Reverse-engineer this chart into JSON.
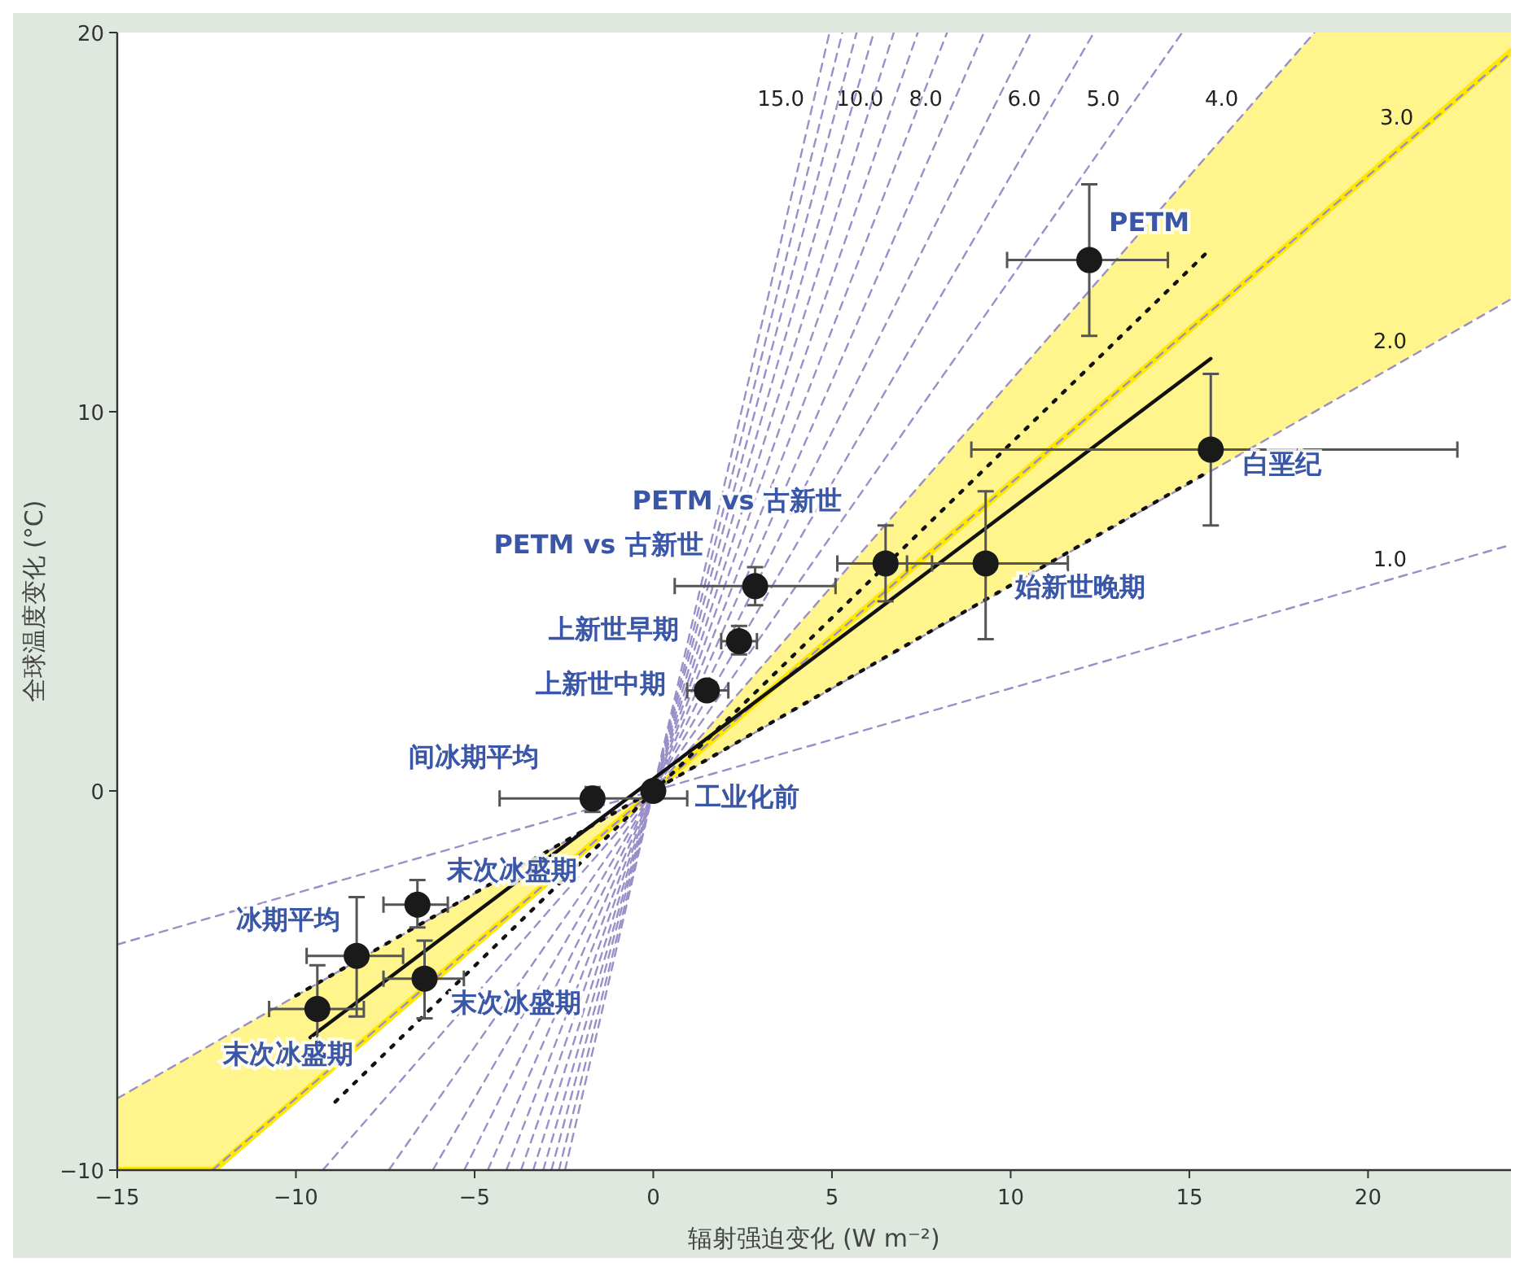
{
  "chart_data": {
    "type": "scatter",
    "xlabel": "辐射强迫变化 (W m⁻²)",
    "ylabel": "全球温度变化 (°C)",
    "xlim": [
      -15,
      24
    ],
    "ylim": [
      -10,
      20
    ],
    "xticks": [
      {
        "value": -15,
        "label": "−15"
      },
      {
        "value": -10,
        "label": "−10"
      },
      {
        "value": -5,
        "label": "−5"
      },
      0,
      5,
      10,
      15,
      20
    ],
    "yticks": [
      {
        "value": -10,
        "label": "−10"
      },
      0,
      10,
      20
    ],
    "grid": false,
    "series": [
      {
        "type": "line",
        "color": "#ffe800",
        "line_style": "solid",
        "x": [
          -15,
          -12.3,
          0,
          18.5,
          24
        ],
        "values": [
          -10,
          -10,
          0,
          15,
          19.5
        ],
        "lower": [
          -10,
          -10,
          0,
          10,
          13
        ],
        "upper": [
          -8.1,
          -6.65,
          0,
          20,
          20
        ]
      },
      {
        "type": "line",
        "name": "1.0",
        "color": "#9a8fc8",
        "line_style": "dashed",
        "x": [
          -15,
          24
        ],
        "values": [
          -4.05,
          6.49
        ]
      },
      {
        "type": "line",
        "name": "2.0",
        "color": "#9a8fc8",
        "line_style": "dashed",
        "x": [
          -15,
          24
        ],
        "values": [
          -8.11,
          12.97
        ]
      },
      {
        "type": "line",
        "name": "3.0",
        "color": "#9a8fc8",
        "line_style": "dashed",
        "x": [
          -12.33,
          24
        ],
        "values": [
          -10,
          19.46
        ]
      },
      {
        "type": "line",
        "name": "4.0",
        "color": "#9a8fc8",
        "line_style": "dashed",
        "x": [
          -9.25,
          18.5
        ],
        "values": [
          -10,
          20
        ]
      },
      {
        "type": "line",
        "name": "5.0",
        "color": "#9a8fc8",
        "line_style": "dashed",
        "x": [
          -7.4,
          14.8
        ],
        "values": [
          -10,
          20
        ]
      },
      {
        "type": "line",
        "name": "6.0",
        "color": "#9a8fc8",
        "line_style": "dashed",
        "x": [
          -6.17,
          12.33
        ],
        "values": [
          -10,
          20
        ]
      },
      {
        "type": "line",
        "color": "#9a8fc8",
        "line_style": "dashed",
        "x": [
          -5.29,
          10.57
        ],
        "values": [
          -10,
          20
        ]
      },
      {
        "type": "line",
        "name": "8.0",
        "color": "#9a8fc8",
        "line_style": "dashed",
        "x": [
          -4.63,
          9.25
        ],
        "values": [
          -10,
          20
        ]
      },
      {
        "type": "line",
        "color": "#9a8fc8",
        "line_style": "dashed",
        "x": [
          -4.11,
          8.22
        ],
        "values": [
          -10,
          20
        ]
      },
      {
        "type": "line",
        "name": "10.0",
        "color": "#9a8fc8",
        "line_style": "dashed",
        "x": [
          -3.7,
          7.4
        ],
        "values": [
          -10,
          20
        ]
      },
      {
        "type": "line",
        "color": "#9a8fc8",
        "line_style": "dashed",
        "x": [
          -3.36,
          6.73
        ],
        "values": [
          -10,
          20
        ]
      },
      {
        "type": "line",
        "color": "#9a8fc8",
        "line_style": "dashed",
        "x": [
          -3.08,
          6.17
        ],
        "values": [
          -10,
          20
        ]
      },
      {
        "type": "line",
        "color": "#9a8fc8",
        "line_style": "dashed",
        "x": [
          -2.85,
          5.69
        ],
        "values": [
          -10,
          20
        ]
      },
      {
        "type": "line",
        "color": "#9a8fc8",
        "line_style": "dashed",
        "x": [
          -2.64,
          5.29
        ],
        "values": [
          -10,
          20
        ]
      },
      {
        "type": "line",
        "name": "15.0",
        "color": "#9a8fc8",
        "line_style": "dashed",
        "x": [
          -2.47,
          4.93
        ],
        "values": [
          -10,
          20
        ]
      },
      {
        "type": "line",
        "color": "#111111",
        "line_style": "dotted",
        "x": [
          -8.9,
          15.6
        ],
        "values": [
          -8.2,
          14.3
        ]
      },
      {
        "type": "line",
        "color": "#111111",
        "line_style": "dotted",
        "x": [
          -10,
          15.5
        ],
        "values": [
          -5.4,
          8.4
        ]
      },
      {
        "type": "line",
        "color": "#111111",
        "line_style": "solid",
        "x": [
          -9.6,
          15.6
        ],
        "values": [
          -6.5,
          11.4
        ]
      },
      {
        "type": "scatter",
        "color": "#1a1a1a",
        "marker": "circle",
        "x": [
          12.2,
          15.6,
          6.5,
          9.3,
          2.85,
          2.4,
          1.5,
          -1.7,
          0,
          -6.6,
          -8.3,
          -6.4,
          -9.4
        ],
        "values": [
          14,
          9,
          6,
          6,
          5.4,
          3.95,
          2.65,
          -0.2,
          0,
          -3,
          -4.35,
          -4.95,
          -5.75
        ],
        "xerrors": [
          [
            9.9,
            14.4
          ],
          [
            8.9,
            22.5
          ],
          [
            5.15,
            7.8
          ],
          [
            7.1,
            11.6
          ],
          [
            0.6,
            5.1
          ],
          [
            1.9,
            2.9
          ],
          [
            0.95,
            2.1
          ],
          [
            -4.3,
            0.95
          ],
          null,
          [
            -7.55,
            -5.75
          ],
          [
            -9.7,
            -7
          ],
          [
            -7.55,
            -5.3
          ],
          [
            -10.75,
            -8.1
          ]
        ],
        "errors": [
          [
            12,
            16
          ],
          [
            7,
            11
          ],
          [
            5,
            7
          ],
          [
            4,
            7.9
          ],
          [
            4.9,
            5.9
          ],
          [
            3.6,
            4.35
          ],
          null,
          [
            -0.55,
            0.1
          ],
          null,
          [
            -3.6,
            -2.35
          ],
          [
            -5.95,
            -2.8
          ],
          [
            -6,
            -3.95
          ],
          [
            -7,
            -4.6
          ]
        ]
      }
    ],
    "annotations": [
      {
        "text": "PETM",
        "x": 12.2,
        "y": 14
      },
      {
        "text": "白垩纪",
        "x": 15.6,
        "y": 9
      },
      {
        "text": "PETM vs 古新世",
        "x": 6.5,
        "y": 6
      },
      {
        "text": "始新世晚期",
        "x": 9.3,
        "y": 6
      },
      {
        "text": "PETM vs 古新世",
        "x": 2.85,
        "y": 5.4
      },
      {
        "text": "上新世早期",
        "x": 2.4,
        "y": 3.95
      },
      {
        "text": "上新世中期",
        "x": 1.5,
        "y": 2.65
      },
      {
        "text": "间冰期平均",
        "x": -1.7,
        "y": -0.2
      },
      {
        "text": "工业化前",
        "x": 0,
        "y": 0
      },
      {
        "text": "末次冰盛期",
        "x": -6.6,
        "y": -3
      },
      {
        "text": "冰期平均",
        "x": -8.3,
        "y": -4.35
      },
      {
        "text": "末次冰盛期",
        "x": -6.4,
        "y": -4.95
      },
      {
        "text": "末次冰盛期",
        "x": -9.4,
        "y": -5.75
      }
    ]
  }
}
